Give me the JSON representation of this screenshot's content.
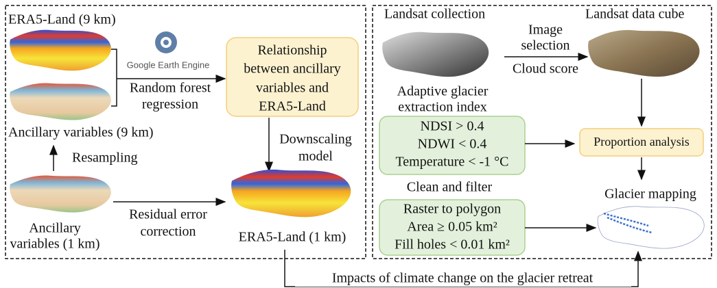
{
  "left": {
    "era5_9km": "ERA5-Land (9 km)",
    "gee": "Google Earth Engine",
    "rf_1": "Random forest",
    "rf_2": "regression",
    "relationship": [
      "Relationship",
      "between ancillary",
      "variables and",
      "ERA5-Land"
    ],
    "anc_9km": "Ancillary variables (9 km)",
    "resampling": "Resampling",
    "downscaling": [
      "Downscaling",
      "model"
    ],
    "anc_1km": [
      "Ancillary",
      "variables (1 km)"
    ],
    "residual": [
      "Residual error",
      "correction"
    ],
    "era5_1km": "ERA5-Land (1 km)"
  },
  "right": {
    "landsat_collection": "Landsat collection",
    "image_selection": [
      "Image",
      "selection"
    ],
    "cloud_score": "Cloud score",
    "landsat_cube": "Landsat data cube",
    "index_title": [
      "Adaptive glacier",
      "extraction index"
    ],
    "index_rules": [
      "NDSI > 0.4",
      "NDWI < 0.4",
      "Temperature < -1 °C"
    ],
    "proportion": "Proportion analysis",
    "clean_title": "Clean and filter",
    "clean_rules": [
      "Raster to polygon",
      "Area ≥ 0.05 km²",
      "Fill holes < 0.01 km²"
    ],
    "glacier_mapping": "Glacier mapping"
  },
  "footer": "Impacts of climate change on the glacier retreat"
}
